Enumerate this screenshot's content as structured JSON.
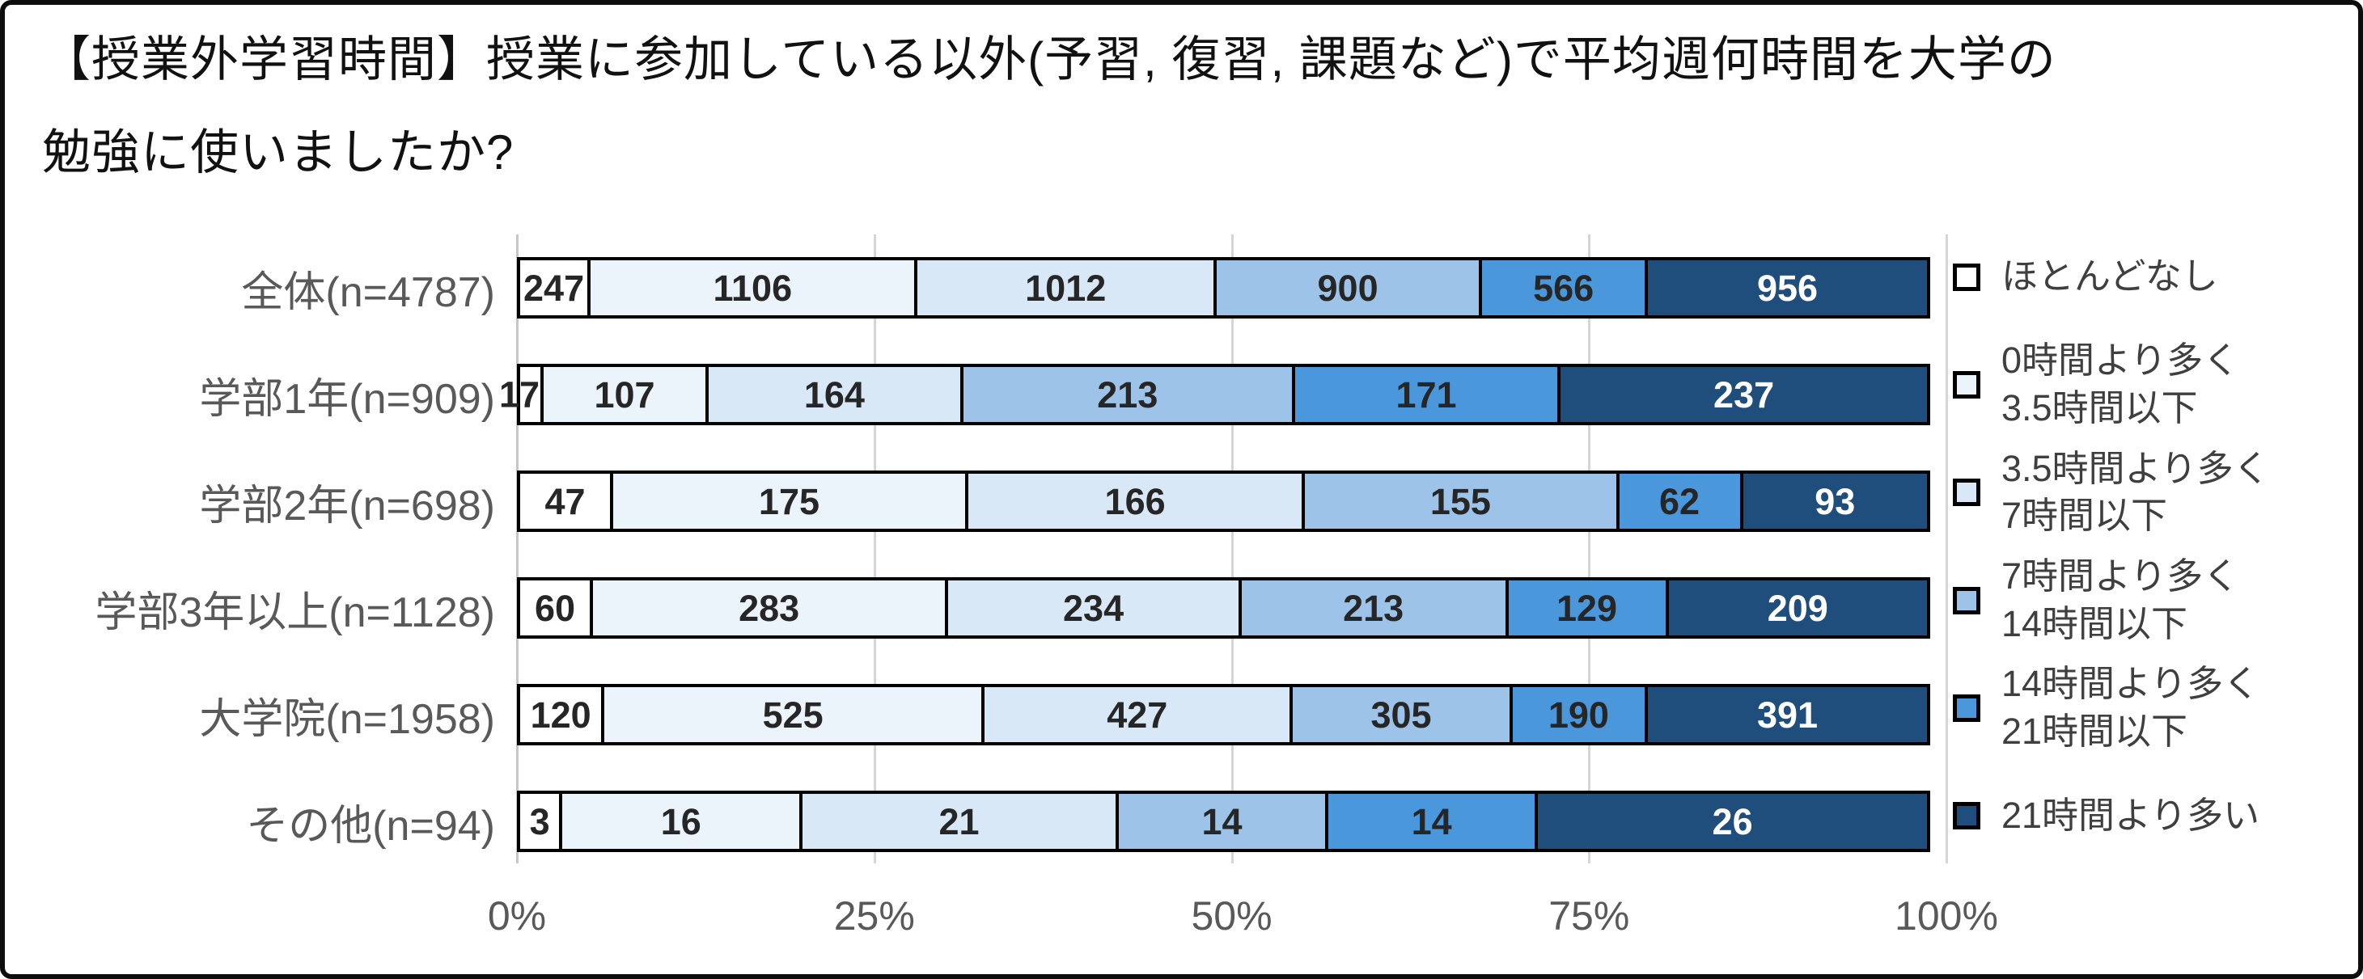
{
  "title": {
    "line1": "【授業外学習時間】授業に参加している以外(予習, 復習, 課題など)で平均週何時間を大学の",
    "line2": "勉強に使いましたか?"
  },
  "chart_data": {
    "type": "bar",
    "subtype": "stacked-horizontal",
    "value_unit": "respondents (count)",
    "categories": [
      "全体(n=4787)",
      "学部1年(n=909)",
      "学部2年(n=698)",
      "学部3年以上(n=1128)",
      "大学院(n=1958)",
      "その他(n=94)"
    ],
    "totals": [
      4787,
      909,
      698,
      1128,
      1958,
      94
    ],
    "series": [
      {
        "name": "ほとんどなし",
        "label_lines": [
          "ほとんどなし"
        ],
        "color": "#ffffff",
        "values": [
          247,
          17,
          47,
          60,
          120,
          3
        ]
      },
      {
        "name": "0時間より多く3.5時間以下",
        "label_lines": [
          "0時間より多く",
          "3.5時間以下"
        ],
        "color": "#ecf4fb",
        "values": [
          1106,
          107,
          175,
          283,
          525,
          16
        ]
      },
      {
        "name": "3.5時間より多く7時間以下",
        "label_lines": [
          "3.5時間より多く",
          "7時間以下"
        ],
        "color": "#d8e8f6",
        "values": [
          1012,
          164,
          166,
          234,
          427,
          21
        ]
      },
      {
        "name": "7時間より多く14時間以下",
        "label_lines": [
          "7時間より多く",
          "14時間以下"
        ],
        "color": "#9dc4e8",
        "values": [
          900,
          213,
          155,
          213,
          305,
          14
        ]
      },
      {
        "name": "14時間より多く21時間以下",
        "label_lines": [
          "14時間より多く",
          "21時間以下"
        ],
        "color": "#4a97dc",
        "values": [
          566,
          171,
          62,
          129,
          190,
          14
        ]
      },
      {
        "name": "21時間より多い",
        "label_lines": [
          "21時間より多い"
        ],
        "color": "#1f4e7c",
        "values": [
          956,
          237,
          93,
          209,
          391,
          26
        ]
      }
    ],
    "x_axis": {
      "tick_labels": [
        "0%",
        "25%",
        "50%",
        "75%",
        "100%"
      ],
      "tick_positions_percent": [
        0,
        25,
        50,
        75,
        100
      ],
      "range_percent": [
        0,
        100
      ],
      "gridlines": true
    },
    "legend_position": "right",
    "styles": {
      "segment_border_color": "#000000",
      "gridline_color": "#d5d5d5",
      "bar_label_color_dark": "#262626",
      "bar_label_color_white": "#ffffff",
      "white_label_series_index": 5
    }
  }
}
